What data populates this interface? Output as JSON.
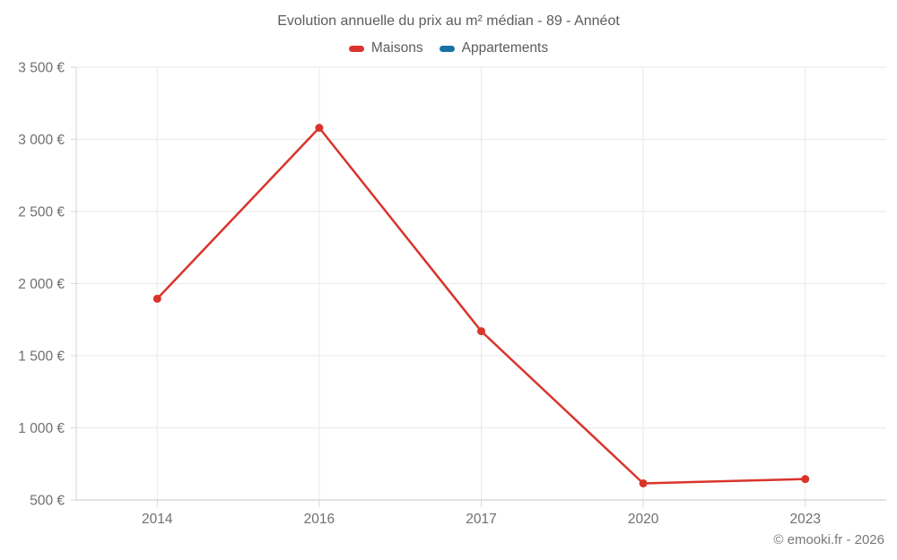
{
  "title": "Evolution annuelle du prix au m² médian - 89 - Annéot",
  "footer": "© emooki.fr - 2026",
  "legend": {
    "items": [
      {
        "label": "Maisons",
        "color": "#d9342c"
      },
      {
        "label": "Appartements",
        "color": "#1a71a3"
      }
    ]
  },
  "colors": {
    "grid": "#e9e9e9",
    "axis_left": "#dcdcdc",
    "axis_bottom": "#d2d2d2",
    "tick": "#d8d8d8",
    "tick_text": "#6f6f6f",
    "title_text": "#5c5c5c",
    "footer_text": "#77787a"
  },
  "chart_data": {
    "type": "line",
    "title": "Evolution annuelle du prix au m² médian - 89 - Annéot",
    "categories": [
      "2014",
      "2016",
      "2017",
      "2020",
      "2023"
    ],
    "series": [
      {
        "name": "Maisons",
        "color": "#d9342c",
        "values": [
          1895,
          3080,
          1670,
          615,
          645
        ]
      },
      {
        "name": "Appartements",
        "color": "#1a71a3",
        "values": []
      }
    ],
    "xlabel": "",
    "ylabel": "",
    "ylim": [
      500,
      3500
    ],
    "ytick_step": 500,
    "ytick_suffix": " €",
    "grid": true,
    "legend_position": "top",
    "marker": "circle"
  }
}
